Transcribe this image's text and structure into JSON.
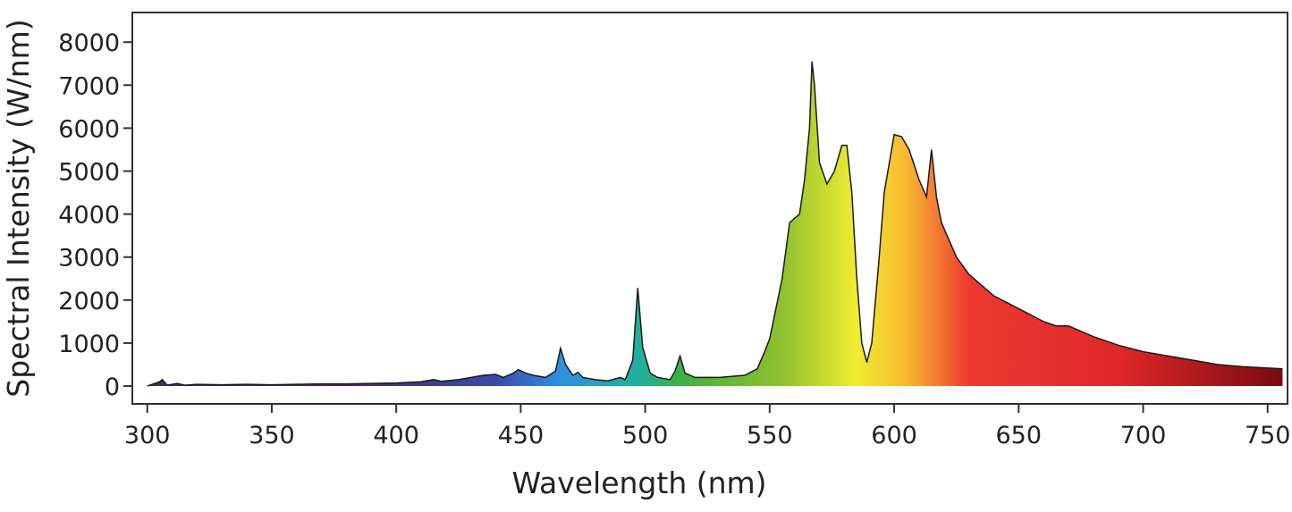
{
  "chart_data": {
    "type": "area",
    "x_label": "Wavelength (nm)",
    "y_label": "Spectral Intensity (W/nm)",
    "x": [
      300,
      305,
      306,
      308,
      312,
      315,
      320,
      330,
      340,
      350,
      360,
      370,
      380,
      390,
      400,
      410,
      415,
      418,
      425,
      435,
      440,
      443,
      447,
      449,
      452,
      455,
      460,
      464,
      466,
      468,
      471,
      473,
      475,
      480,
      485,
      490,
      492,
      495,
      497,
      499,
      502,
      505,
      510,
      512,
      514,
      516,
      520,
      530,
      540,
      545,
      548,
      550,
      555,
      558,
      562,
      564,
      566,
      567,
      568,
      570,
      573,
      576,
      579,
      581,
      583,
      585,
      587,
      589,
      591,
      594,
      596,
      600,
      603,
      606,
      610,
      613,
      615,
      617,
      619,
      625,
      630,
      640,
      650,
      660,
      665,
      670,
      680,
      690,
      700,
      710,
      720,
      730,
      740,
      750,
      756
    ],
    "y": [
      0,
      100,
      150,
      20,
      60,
      20,
      40,
      30,
      40,
      30,
      40,
      50,
      50,
      60,
      70,
      100,
      150,
      110,
      150,
      250,
      270,
      200,
      300,
      380,
      300,
      250,
      200,
      350,
      880,
      500,
      250,
      320,
      200,
      150,
      120,
      200,
      150,
      600,
      2280,
      900,
      300,
      200,
      150,
      350,
      700,
      300,
      200,
      200,
      250,
      400,
      800,
      1100,
      2500,
      3800,
      4000,
      4800,
      6000,
      7550,
      7000,
      5200,
      4700,
      5000,
      5600,
      5600,
      4500,
      2500,
      1000,
      550,
      1000,
      3000,
      4500,
      5850,
      5800,
      5500,
      4800,
      4400,
      5500,
      4400,
      3800,
      3000,
      2600,
      2100,
      1800,
      1500,
      1400,
      1400,
      1150,
      950,
      800,
      700,
      600,
      500,
      450,
      420,
      400
    ],
    "gradient": [
      {
        "at": 380,
        "color": "#4a2a6a"
      },
      {
        "at": 440,
        "color": "#3a4aa8"
      },
      {
        "at": 465,
        "color": "#2f8fe0"
      },
      {
        "at": 497,
        "color": "#20b0a0"
      },
      {
        "at": 515,
        "color": "#40b040"
      },
      {
        "at": 555,
        "color": "#90c030"
      },
      {
        "at": 585,
        "color": "#f2ec30"
      },
      {
        "at": 605,
        "color": "#f6b830"
      },
      {
        "at": 630,
        "color": "#ee3a30"
      },
      {
        "at": 690,
        "color": "#e02828"
      },
      {
        "at": 756,
        "color": "#7a0a10"
      }
    ],
    "line_color": "#1a1a1a",
    "xlim": [
      294,
      758
    ],
    "ylim": [
      -415,
      8690
    ],
    "xticks": [
      300,
      350,
      400,
      450,
      500,
      550,
      600,
      650,
      700,
      750
    ],
    "yticks": [
      0,
      1000,
      2000,
      3000,
      4000,
      5000,
      6000,
      7000,
      8000
    ]
  }
}
